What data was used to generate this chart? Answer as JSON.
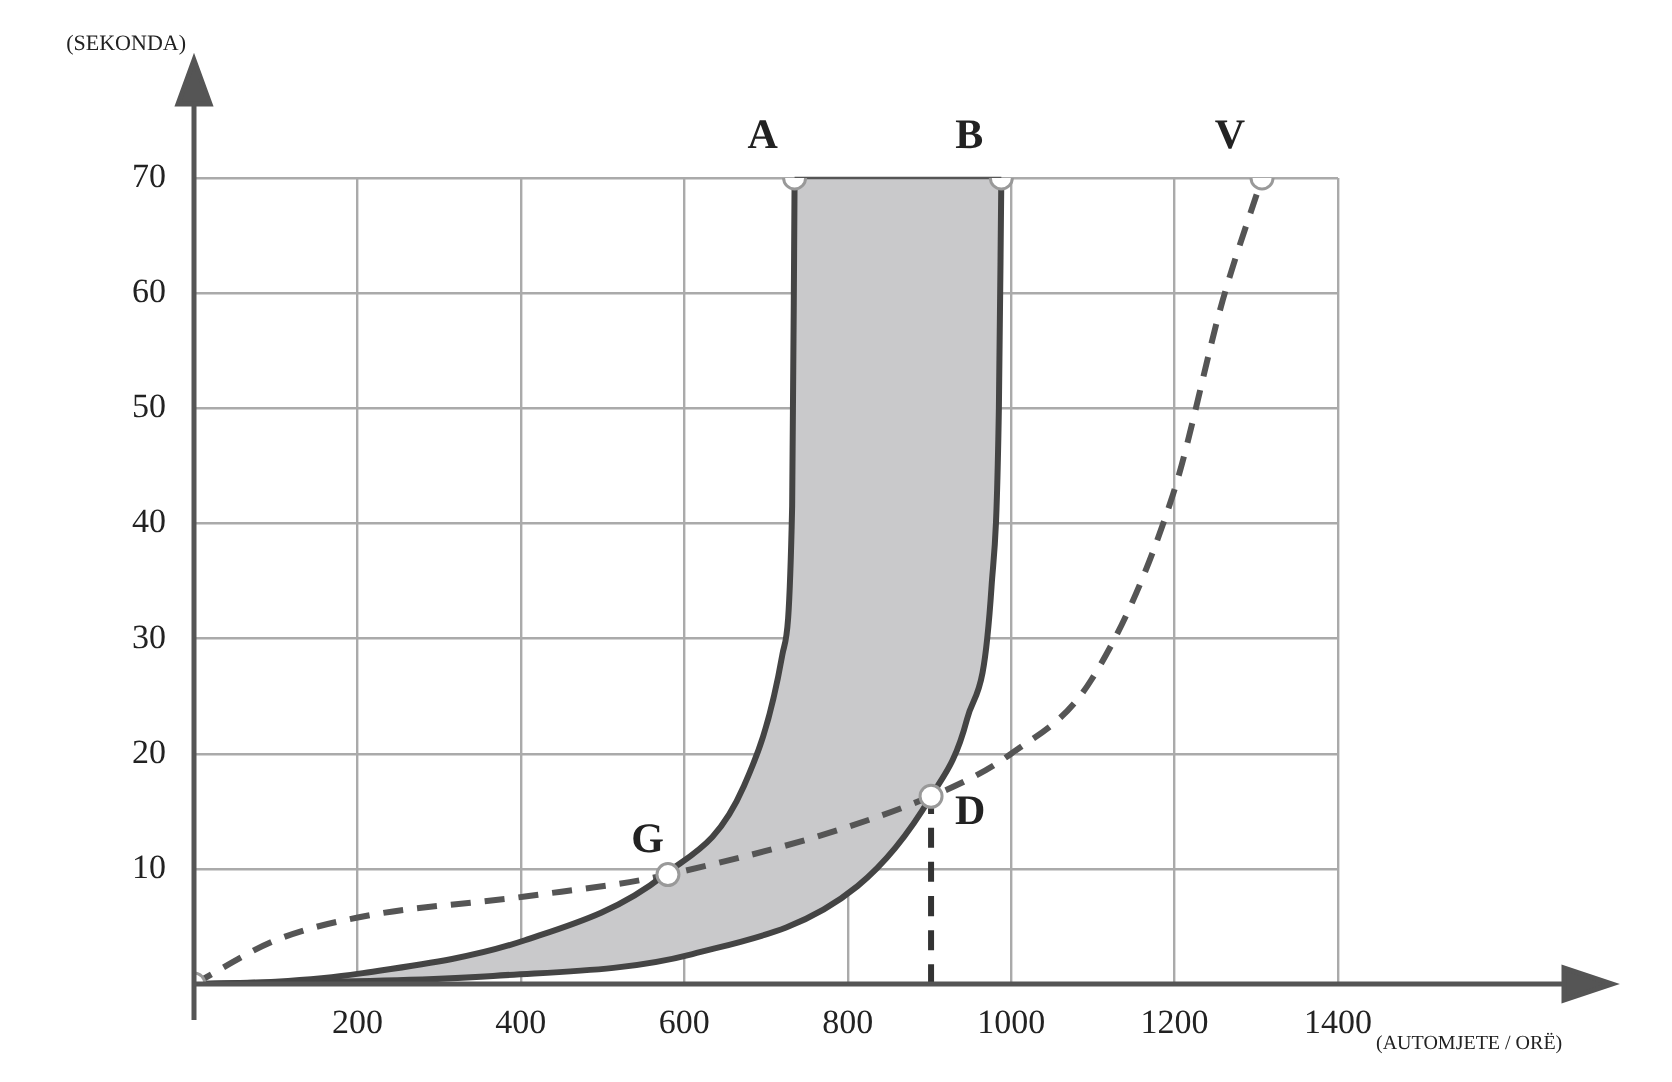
{
  "chart_data": {
    "type": "line",
    "xlabel": "(AUTOMJETE / ORË)",
    "ylabel": "(SEKONDA)",
    "xlim": [
      0,
      1400
    ],
    "ylim": [
      0,
      70
    ],
    "xticks": [
      200,
      400,
      600,
      800,
      1000,
      1200,
      1400
    ],
    "yticks": [
      10,
      20,
      30,
      40,
      50,
      60,
      70
    ],
    "grid": true,
    "legend": false,
    "series": [
      {
        "type": "line",
        "color": "#444444",
        "line_style": "solid",
        "marker": "none",
        "x": [
          0,
          100,
          202,
          405,
          576,
          673,
          720,
          732,
          735
        ],
        "values": [
          0,
          0.2,
          0.9,
          3.8,
          9.5,
          17.2,
          28.6,
          41.5,
          70
        ]
      },
      {
        "type": "line",
        "color": "#444444",
        "line_style": "solid",
        "marker": "none",
        "x": [
          0,
          366,
          610,
          812,
          902,
          946,
          976,
          985,
          988
        ],
        "values": [
          0,
          0.7,
          2.6,
          8.5,
          16.3,
          23,
          34.5,
          50,
          70
        ]
      },
      {
        "type": "line",
        "color": "#555555",
        "line_style": "dashed",
        "marker": "none",
        "x": [
          0,
          100,
          202,
          405,
          580,
          902,
          1000,
          1098,
          1198,
          1259,
          1307
        ],
        "values": [
          0,
          3.8,
          5.8,
          7.6,
          9.5,
          16.3,
          20,
          26.4,
          42.5,
          59.4,
          70
        ]
      },
      {
        "type": "line",
        "color": "#333333",
        "line_style": "dashed",
        "marker": "none",
        "x": [
          902,
          902
        ],
        "values": [
          0,
          16.3
        ]
      },
      {
        "type": "scatter",
        "color": "#ffffff",
        "marker": "circle",
        "x": [
          0,
          580,
          902,
          735,
          988,
          1307
        ],
        "values": [
          0,
          9.5,
          16.3,
          70,
          70,
          70
        ]
      }
    ],
    "annotations": [
      {
        "text": "A",
        "x": 735,
        "y": 70
      },
      {
        "text": "B",
        "x": 988,
        "y": 70
      },
      {
        "text": "V",
        "x": 1307,
        "y": 70
      },
      {
        "text": "G",
        "x": 580,
        "y": 9.5
      },
      {
        "text": "D",
        "x": 902,
        "y": 16.3
      }
    ]
  }
}
